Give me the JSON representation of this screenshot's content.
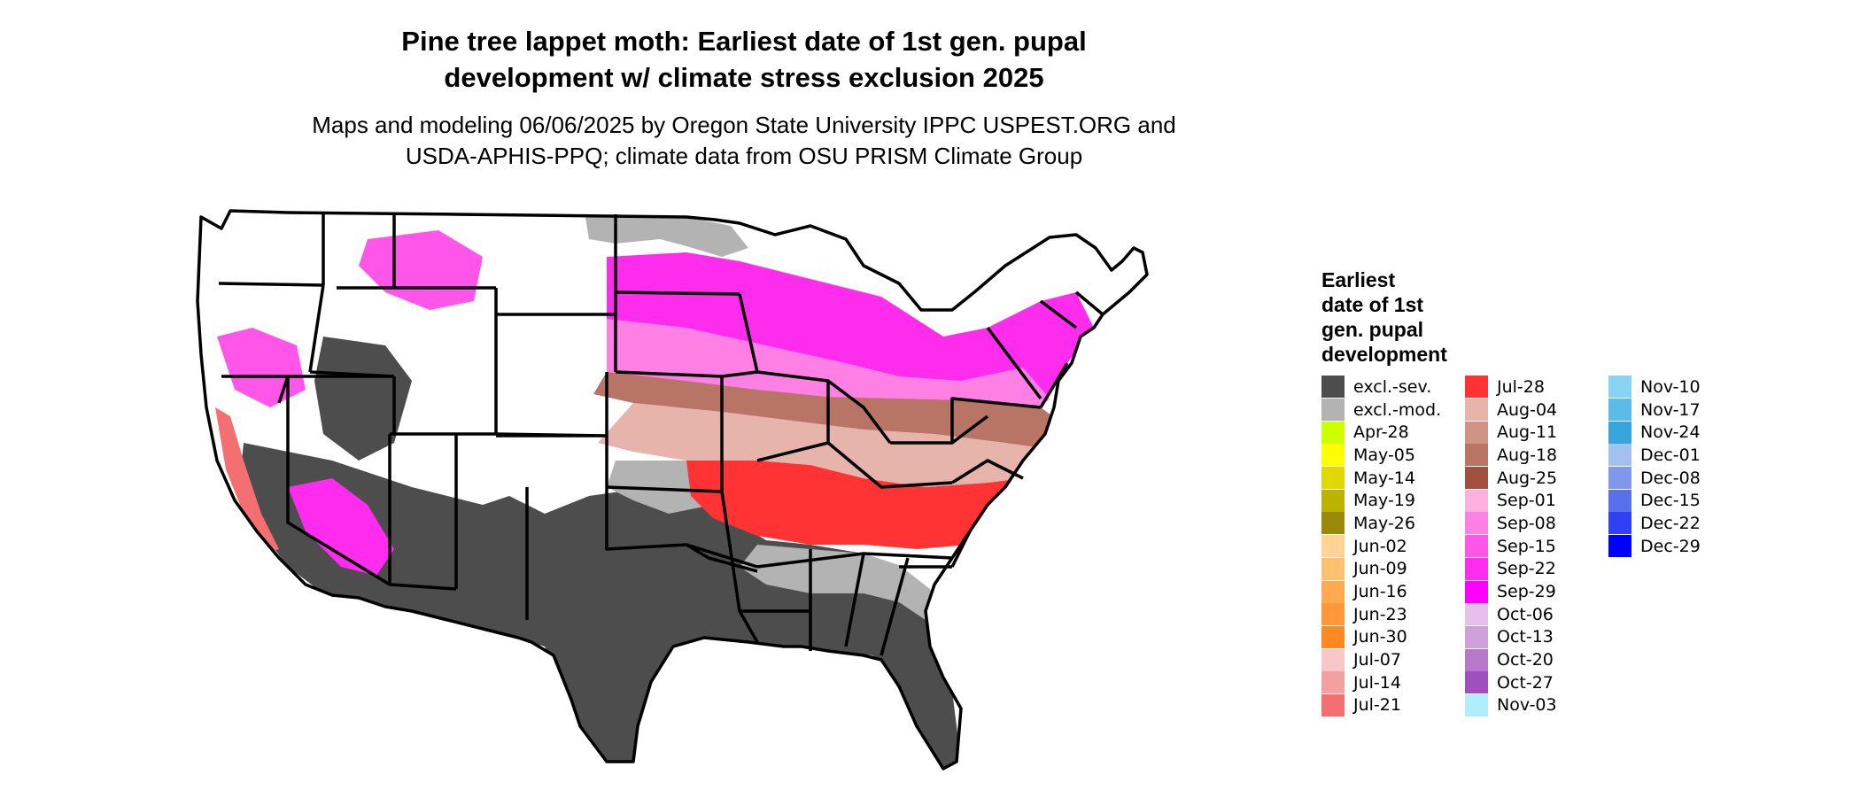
{
  "title_line1": "Pine tree lappet moth: Earliest date of 1st gen. pupal",
  "title_line2": "development w/ climate stress exclusion 2025",
  "subtitle_line1": "Maps and modeling 06/06/2025 by Oregon State University IPPC USPEST.ORG and",
  "subtitle_line2": "USDA-APHIS-PPQ; climate data from OSU PRISM Climate Group",
  "legend": {
    "title_lines": [
      "Earliest",
      "date of 1st",
      "gen. pupal",
      "development"
    ],
    "columns": [
      [
        {
          "label": "excl.-sev.",
          "color": "#4d4d4d"
        },
        {
          "label": "excl.-mod.",
          "color": "#b3b3b3"
        },
        {
          "label": "Apr-28",
          "color": "#ccff00"
        },
        {
          "label": "May-05",
          "color": "#ffff00"
        },
        {
          "label": "May-14",
          "color": "#e0d800"
        },
        {
          "label": "May-19",
          "color": "#bdb200"
        },
        {
          "label": "May-26",
          "color": "#9b8a0a"
        },
        {
          "label": "Jun-02",
          "color": "#ffd494"
        },
        {
          "label": "Jun-09",
          "color": "#ffc070"
        },
        {
          "label": "Jun-16",
          "color": "#ffaa50"
        },
        {
          "label": "Jun-23",
          "color": "#ff9838"
        },
        {
          "label": "Jun-30",
          "color": "#ff8820"
        },
        {
          "label": "Jul-07",
          "color": "#f8c8c8"
        },
        {
          "label": "Jul-14",
          "color": "#f5a0a0"
        },
        {
          "label": "Jul-21",
          "color": "#f47070"
        }
      ],
      [
        {
          "label": "Jul-28",
          "color": "#ff3333"
        },
        {
          "label": "Aug-04",
          "color": "#e6b4aa"
        },
        {
          "label": "Aug-11",
          "color": "#d09486"
        },
        {
          "label": "Aug-18",
          "color": "#b87464"
        },
        {
          "label": "Aug-25",
          "color": "#a0503c"
        },
        {
          "label": "Sep-01",
          "color": "#ffb0e0"
        },
        {
          "label": "Sep-08",
          "color": "#ff80e4"
        },
        {
          "label": "Sep-15",
          "color": "#ff55e8"
        },
        {
          "label": "Sep-22",
          "color": "#ff2cee"
        },
        {
          "label": "Sep-29",
          "color": "#ff00ff"
        },
        {
          "label": "Oct-06",
          "color": "#e6c0ea"
        },
        {
          "label": "Oct-13",
          "color": "#cfa0dc"
        },
        {
          "label": "Oct-20",
          "color": "#b878cc"
        },
        {
          "label": "Oct-27",
          "color": "#a050bc"
        },
        {
          "label": "Nov-03",
          "color": "#b0eeff"
        }
      ],
      [
        {
          "label": "Nov-10",
          "color": "#88d4f4"
        },
        {
          "label": "Nov-17",
          "color": "#5cbce8"
        },
        {
          "label": "Nov-24",
          "color": "#38a4dc"
        },
        {
          "label": "Dec-01",
          "color": "#a4c0ec"
        },
        {
          "label": "Dec-08",
          "color": "#8098ec"
        },
        {
          "label": "Dec-15",
          "color": "#5870ec"
        },
        {
          "label": "Dec-22",
          "color": "#3040f4"
        },
        {
          "label": "Dec-29",
          "color": "#0000ff"
        }
      ]
    ]
  }
}
